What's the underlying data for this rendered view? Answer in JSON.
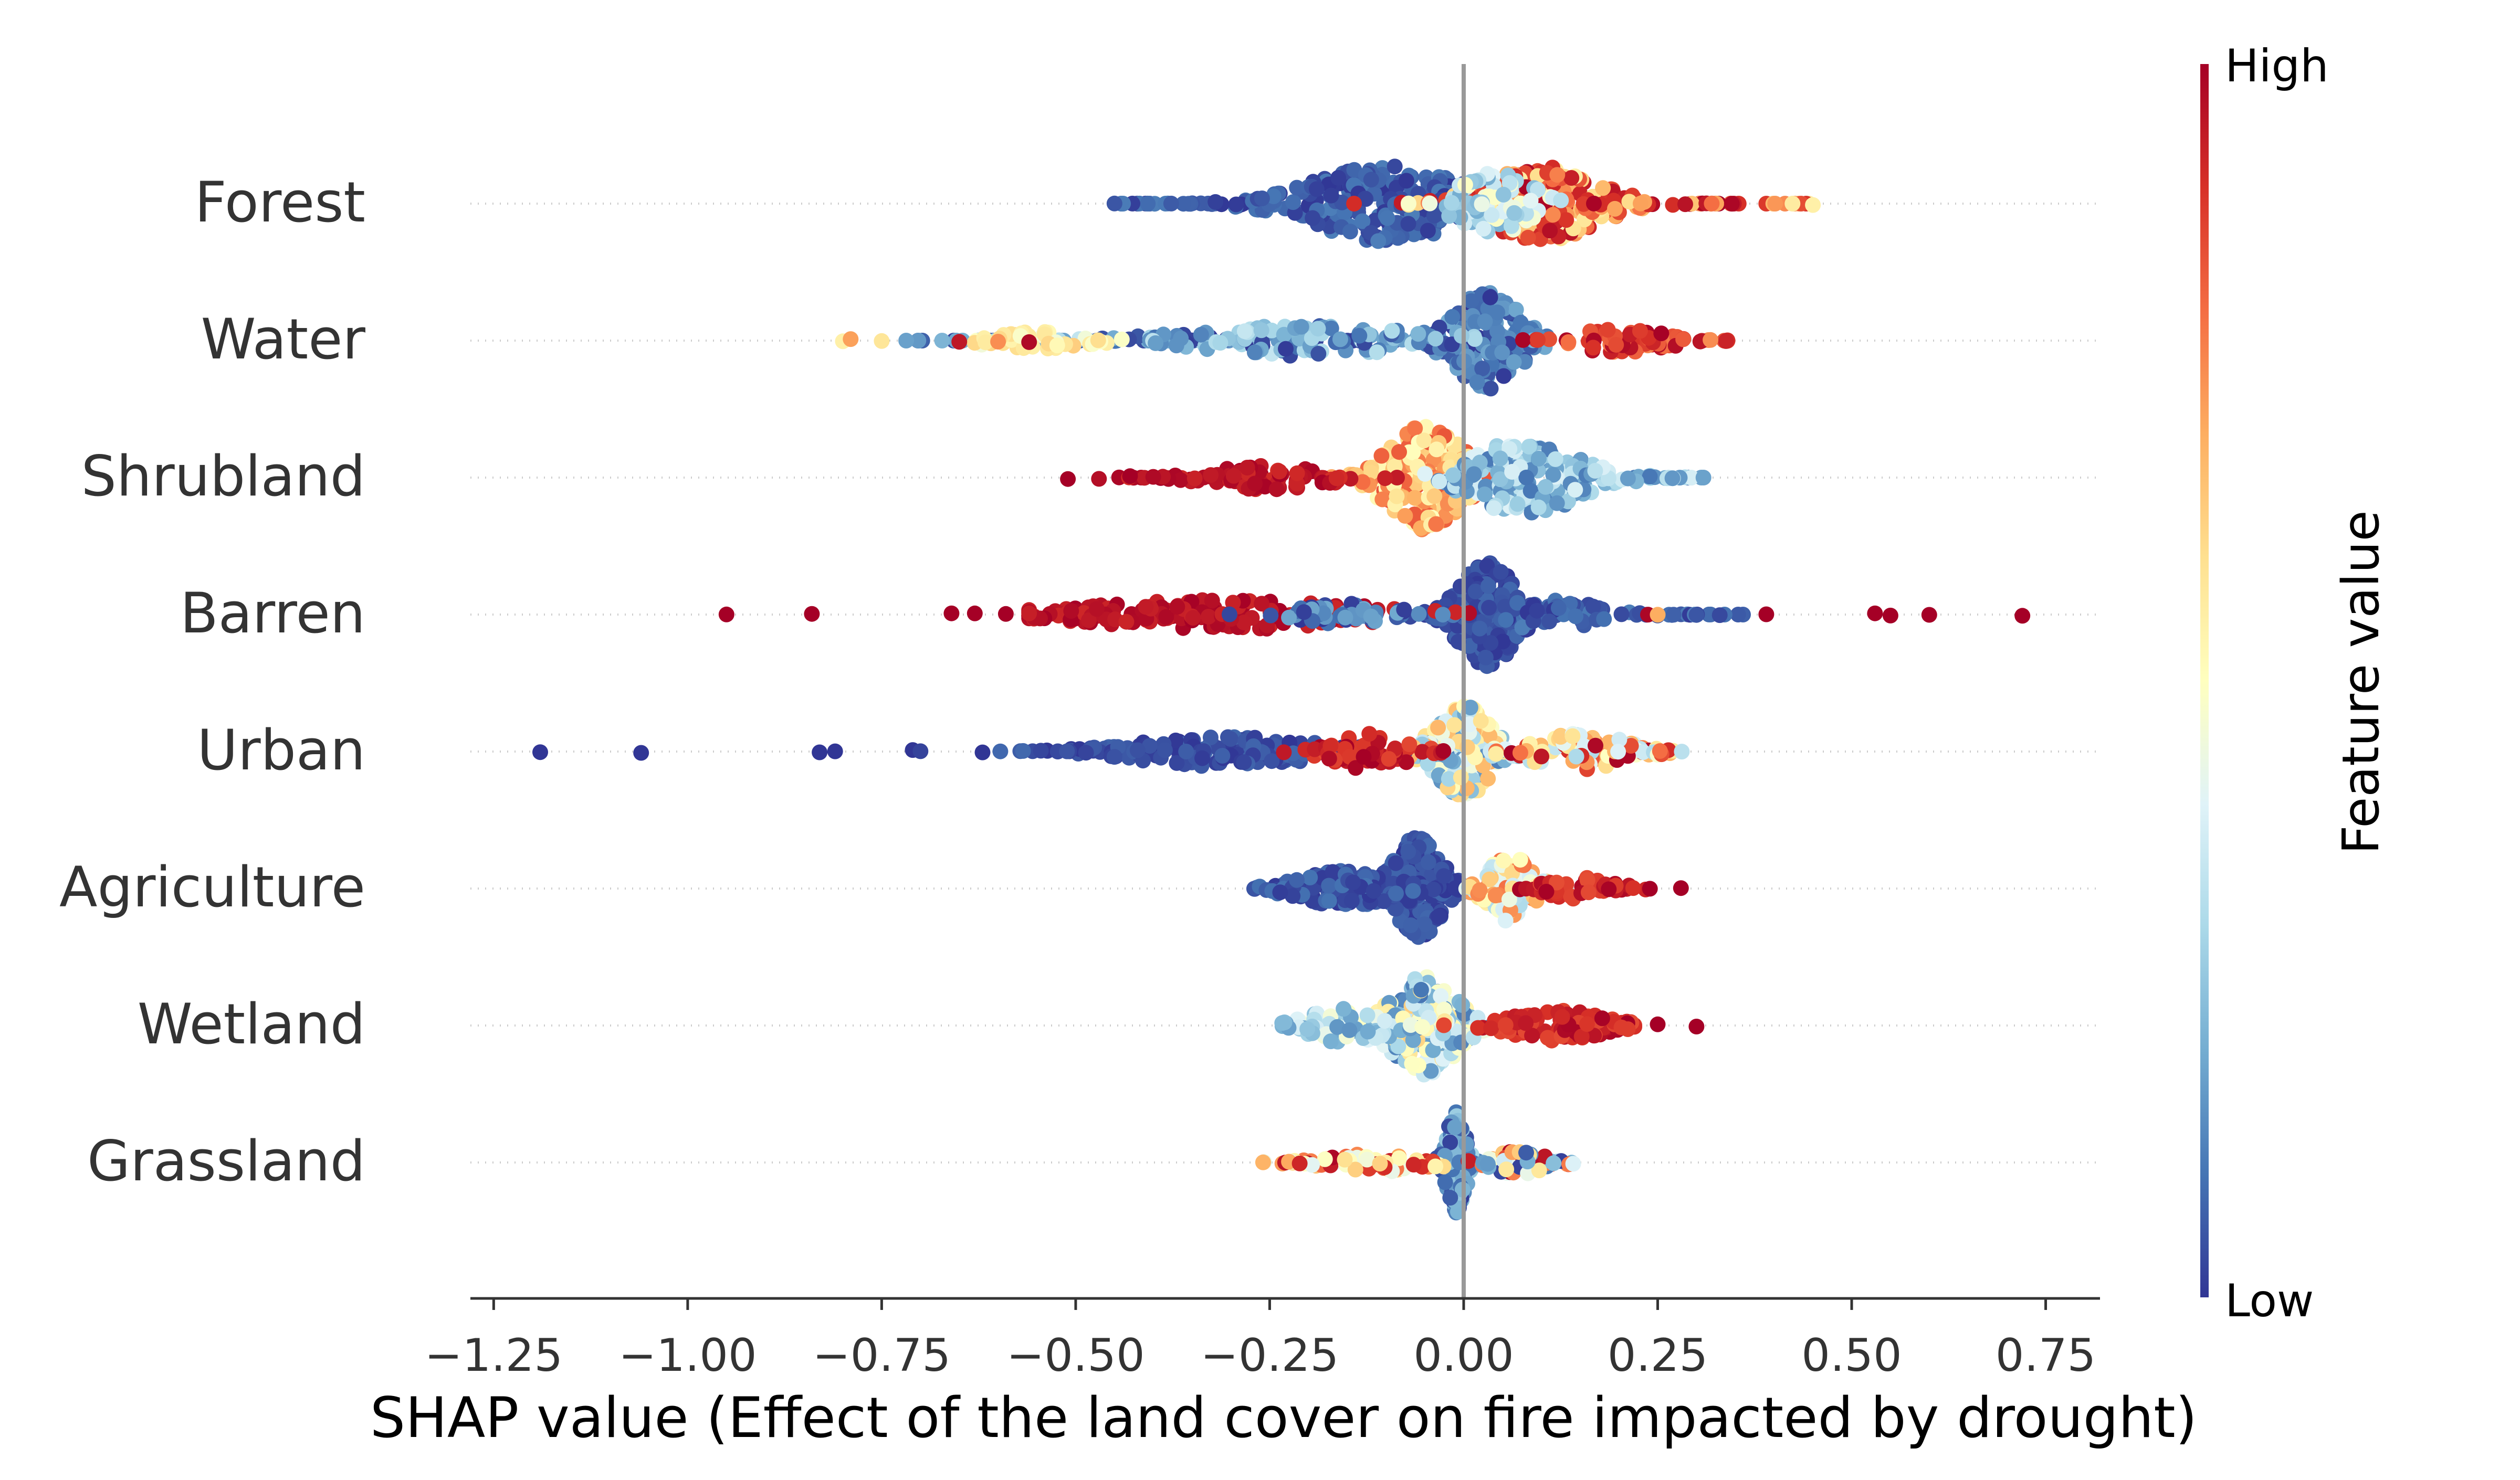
{
  "colors": {
    "low": "#313695",
    "high": "#a50026",
    "zero_line": "#999999",
    "grid": "#cccccc",
    "axis": "#333333"
  },
  "chart_data": {
    "type": "scatter",
    "subtype": "shap-beeswarm",
    "xlabel": "SHAP value (Effect of the land cover on fire impacted by drought)",
    "xlim": [
      -1.28,
      0.82
    ],
    "x_ticks": [
      -1.25,
      -1.0,
      -0.75,
      -0.5,
      -0.25,
      0.0,
      0.25,
      0.5,
      0.75
    ],
    "x_tick_labels": [
      "−1.25",
      "−1.00",
      "−0.75",
      "−0.50",
      "−0.25",
      "0.00",
      "0.25",
      "0.50",
      "0.75"
    ],
    "colorbar": {
      "label": "Feature value",
      "high_label": "High",
      "low_label": "Low",
      "colormap": "RdYlBu_r"
    },
    "features": [
      {
        "name": "Forest",
        "outliers": [
          [
            -0.45,
            0.05
          ],
          [
            0.45,
            0.55
          ]
        ],
        "clusters": [
          {
            "center": -0.1,
            "spread": 0.16,
            "height": 0.62,
            "n": 260,
            "color_range": [
              0.0,
              0.12
            ],
            "tail_min": -0.45
          },
          {
            "center": 0.1,
            "spread": 0.12,
            "height": 0.62,
            "n": 240,
            "color_range": [
              0.55,
              1.0
            ],
            "tail_max": 0.45
          },
          {
            "center": 0.04,
            "spread": 0.08,
            "height": 0.5,
            "n": 80,
            "color_range": [
              0.2,
              0.5
            ]
          }
        ]
      },
      {
        "name": "Water",
        "outliers": [
          [
            -0.8,
            0.55
          ],
          [
            -0.79,
            0.72
          ],
          [
            -0.75,
            0.58
          ],
          [
            -0.65,
            0.95
          ],
          [
            -0.6,
            0.75
          ],
          [
            -0.56,
            0.98
          ]
        ],
        "clusters": [
          {
            "center": 0.03,
            "spread": 0.07,
            "height": 0.8,
            "n": 200,
            "color_range": [
              0.0,
              0.2
            ],
            "tail_min": -0.7
          },
          {
            "center": -0.2,
            "spread": 0.25,
            "height": 0.25,
            "n": 140,
            "color_range": [
              0.0,
              0.35
            ],
            "tail_min": -0.72
          },
          {
            "center": 0.2,
            "spread": 0.1,
            "height": 0.2,
            "n": 70,
            "color_range": [
              0.75,
              1.0
            ],
            "tail_max": 0.34
          },
          {
            "center": -0.55,
            "spread": 0.1,
            "height": 0.15,
            "n": 40,
            "color_range": [
              0.45,
              0.65
            ]
          }
        ]
      },
      {
        "name": "Shrubland",
        "outliers": [
          [
            -0.51,
            1.0
          ],
          [
            -0.47,
            0.97
          ],
          [
            -0.43,
            1.0
          ],
          [
            -0.4,
            0.98
          ]
        ],
        "clusters": [
          {
            "center": -0.05,
            "spread": 0.08,
            "height": 0.85,
            "n": 220,
            "color_range": [
              0.5,
              0.85
            ]
          },
          {
            "center": 0.08,
            "spread": 0.12,
            "height": 0.6,
            "n": 220,
            "color_range": [
              0.1,
              0.4
            ],
            "tail_max": 0.31
          },
          {
            "center": -0.25,
            "spread": 0.12,
            "height": 0.2,
            "n": 90,
            "color_range": [
              0.9,
              1.0
            ],
            "tail_min": -0.45
          }
        ]
      },
      {
        "name": "Barren",
        "outliers": [
          [
            -0.95,
            1.0
          ],
          [
            -0.84,
            1.0
          ],
          [
            -0.66,
            1.0
          ],
          [
            -0.63,
            1.0
          ],
          [
            -0.59,
            1.0
          ],
          [
            0.39,
            1.0
          ],
          [
            0.53,
            1.0
          ],
          [
            0.55,
            1.0
          ],
          [
            0.6,
            1.0
          ],
          [
            0.72,
            1.0
          ],
          [
            0.33,
            0.03
          ],
          [
            0.3,
            0.05
          ],
          [
            0.25,
            0.7
          ]
        ],
        "clusters": [
          {
            "center": 0.03,
            "spread": 0.06,
            "height": 0.85,
            "n": 220,
            "color_range": [
              0.0,
              0.08
            ]
          },
          {
            "center": 0.1,
            "spread": 0.12,
            "height": 0.25,
            "n": 80,
            "color_range": [
              0.0,
              0.12
            ],
            "tail_max": 0.38
          },
          {
            "center": -0.3,
            "spread": 0.3,
            "height": 0.25,
            "n": 170,
            "color_range": [
              0.92,
              1.0
            ],
            "tail_min": -0.56
          },
          {
            "center": -0.15,
            "spread": 0.1,
            "height": 0.2,
            "n": 60,
            "color_range": [
              0.0,
              0.2
            ]
          }
        ]
      },
      {
        "name": "Urban",
        "outliers": [
          [
            -1.19,
            0.0
          ],
          [
            -1.06,
            0.0
          ],
          [
            -0.83,
            0.0
          ],
          [
            -0.81,
            0.0
          ],
          [
            -0.71,
            0.0
          ],
          [
            -0.7,
            0.02
          ],
          [
            -0.62,
            0.0
          ]
        ],
        "clusters": [
          {
            "center": 0.0,
            "spread": 0.06,
            "height": 0.75,
            "n": 200,
            "color_range": [
              0.1,
              0.7
            ]
          },
          {
            "center": -0.3,
            "spread": 0.2,
            "height": 0.25,
            "n": 150,
            "color_range": [
              0.0,
              0.08
            ],
            "tail_min": -0.6
          },
          {
            "center": 0.15,
            "spread": 0.1,
            "height": 0.3,
            "n": 90,
            "color_range": [
              0.3,
              1.0
            ],
            "tail_max": 0.29
          },
          {
            "center": -0.12,
            "spread": 0.08,
            "height": 0.3,
            "n": 60,
            "color_range": [
              0.85,
              1.0
            ]
          }
        ]
      },
      {
        "name": "Agriculture",
        "outliers": [
          [
            0.24,
            1.0
          ],
          [
            0.28,
            1.0
          ]
        ],
        "clusters": [
          {
            "center": -0.06,
            "spread": 0.05,
            "height": 0.85,
            "n": 220,
            "color_range": [
              0.0,
              0.08
            ]
          },
          {
            "center": -0.15,
            "spread": 0.1,
            "height": 0.3,
            "n": 120,
            "color_range": [
              0.0,
              0.1
            ],
            "tail_min": -0.27
          },
          {
            "center": 0.06,
            "spread": 0.05,
            "height": 0.55,
            "n": 100,
            "color_range": [
              0.3,
              0.8
            ]
          },
          {
            "center": 0.15,
            "spread": 0.07,
            "height": 0.2,
            "n": 50,
            "color_range": [
              0.85,
              1.0
            ],
            "tail_max": 0.24
          }
        ]
      },
      {
        "name": "Wetland",
        "outliers": [
          [
            0.25,
            1.0
          ],
          [
            0.3,
            1.0
          ]
        ],
        "clusters": [
          {
            "center": -0.05,
            "spread": 0.07,
            "height": 0.8,
            "n": 200,
            "color_range": [
              0.1,
              0.65
            ]
          },
          {
            "center": 0.12,
            "spread": 0.1,
            "height": 0.25,
            "n": 110,
            "color_range": [
              0.85,
              1.0
            ],
            "tail_max": 0.22
          },
          {
            "center": -0.15,
            "spread": 0.08,
            "height": 0.3,
            "n": 70,
            "color_range": [
              0.15,
              0.5
            ],
            "tail_min": -0.24
          }
        ]
      },
      {
        "name": "Grassland",
        "outliers": [],
        "clusters": [
          {
            "center": -0.01,
            "spread": 0.02,
            "height": 0.85,
            "n": 130,
            "color_range": [
              0.0,
              0.3
            ]
          },
          {
            "center": -0.1,
            "spread": 0.12,
            "height": 0.15,
            "n": 70,
            "color_range": [
              0.4,
              1.0
            ],
            "tail_min": -0.27
          },
          {
            "center": 0.07,
            "spread": 0.06,
            "height": 0.2,
            "n": 60,
            "color_range": [
              0.0,
              1.0
            ],
            "tail_max": 0.15
          }
        ]
      }
    ]
  }
}
